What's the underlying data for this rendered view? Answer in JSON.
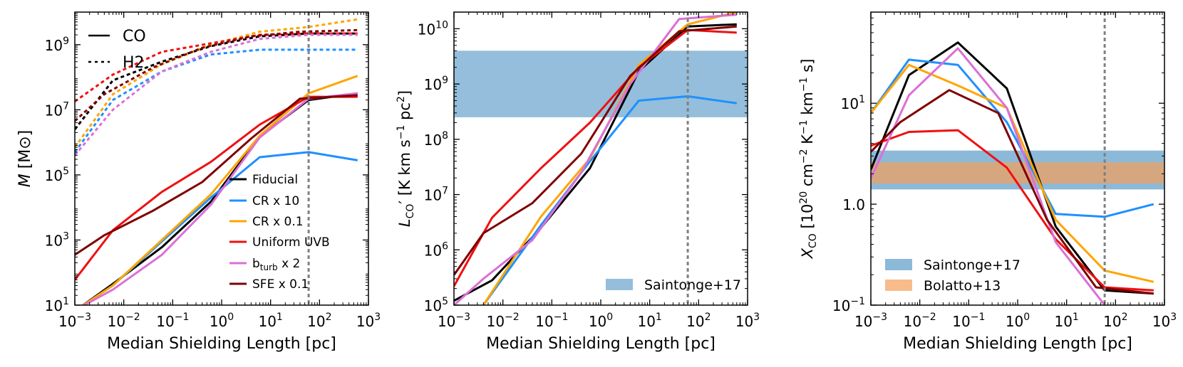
{
  "figure": {
    "panel_a": {
      "ylabel_main": "M",
      "ylabel_unit_open": " [M",
      "ylabel_unit_sub": "⊙",
      "ylabel_unit_close": "]",
      "style_legend": [
        {
          "label": "CO",
          "dash": "solid"
        },
        {
          "label": "H2",
          "dash": "dashed"
        }
      ]
    },
    "panel_b": {
      "ylabel_main": "L",
      "ylabel_sub": "CO",
      "ylabel_rest": "′ [K km s",
      "ylabel_exp1": "−1",
      "ylabel_mid": " pc",
      "ylabel_exp2": "2",
      "ylabel_close": "]"
    },
    "panel_c": {
      "ylabel_main": "X",
      "ylabel_sub": "CO",
      "ylabel_rest": " [10",
      "ylabel_exp0": "20",
      "ylabel_a": " cm",
      "ylabel_exp1": "−2",
      "ylabel_b": " K",
      "ylabel_exp2": "−1",
      "ylabel_c": " km",
      "ylabel_exp3": "−1",
      "ylabel_d": " s]"
    },
    "series_legend": [
      {
        "label": "Fiducial",
        "color": "#000000"
      },
      {
        "label": "CR x 10",
        "color": "#1e90ff"
      },
      {
        "label": "CR x 0.1",
        "color": "#ffa500"
      },
      {
        "label": "Uniform UVB",
        "color": "#ee1111"
      },
      {
        "label": "b",
        "sub": "turb",
        "label_tail": " x 2",
        "color": "#da70d6"
      },
      {
        "label": "SFE x 0.1",
        "color": "#800000"
      }
    ]
  },
  "chart_data": [
    {
      "type": "line",
      "title": "",
      "xlabel": "Median Shielding Length [pc]",
      "ylabel": "M [M_sun]",
      "xscale": "log",
      "yscale": "log",
      "xlim": [
        0.001,
        1000
      ],
      "ylim": [
        10,
        10000000000
      ],
      "xticks": [
        {
          "v": 0.001,
          "b": "10",
          "e": "−3"
        },
        {
          "v": 0.01,
          "b": "10",
          "e": "−2"
        },
        {
          "v": 0.1,
          "b": "10",
          "e": "−1"
        },
        {
          "v": 1,
          "b": "10",
          "e": "0"
        },
        {
          "v": 10,
          "b": "10",
          "e": "1"
        },
        {
          "v": 100,
          "b": "10",
          "e": "2"
        },
        {
          "v": 1000,
          "b": "10",
          "e": "3"
        }
      ],
      "yticks": [
        {
          "v": 10,
          "b": "10",
          "e": "1"
        },
        {
          "v": 1000,
          "b": "10",
          "e": "3"
        },
        {
          "v": 100000,
          "b": "10",
          "e": "5"
        },
        {
          "v": 10000000,
          "b": "10",
          "e": "7"
        },
        {
          "v": 1000000000,
          "b": "10",
          "e": "9"
        }
      ],
      "vline": 60,
      "bands": [],
      "series": [
        {
          "name": "Fiducial CO",
          "color": "#000000",
          "dash": "solid",
          "x": [
            0.0012,
            0.006,
            0.06,
            0.6,
            6,
            60,
            600
          ],
          "y": [
            8,
            45,
            600,
            15000,
            1500000,
            20000000,
            32000000
          ]
        },
        {
          "name": "CR x 10 CO",
          "color": "#1e90ff",
          "dash": "solid",
          "x": [
            0.0012,
            0.006,
            0.06,
            0.6,
            6,
            60,
            600
          ],
          "y": [
            8,
            40,
            900,
            20000,
            350000,
            500000,
            280000
          ]
        },
        {
          "name": "CR x 0.1 CO",
          "color": "#ffa500",
          "dash": "solid",
          "x": [
            0.0012,
            0.006,
            0.06,
            0.6,
            6,
            60,
            600
          ],
          "y": [
            8,
            40,
            1000,
            25000,
            1600000,
            32000000,
            110000000
          ]
        },
        {
          "name": "Uniform UVB CO",
          "color": "#ee1111",
          "dash": "solid",
          "x": [
            0.001,
            0.006,
            0.06,
            0.6,
            6,
            60,
            600
          ],
          "y": [
            60,
            2000,
            30000,
            250000,
            3500000,
            25000000,
            25000000
          ]
        },
        {
          "name": "b_turb x 2 CO",
          "color": "#da70d6",
          "dash": "solid",
          "x": [
            0.0012,
            0.006,
            0.06,
            0.6,
            6,
            60,
            600
          ],
          "y": [
            8,
            30,
            350,
            12000,
            1400000,
            22000000,
            32000000
          ]
        },
        {
          "name": "SFE x 0.1 CO",
          "color": "#800000",
          "dash": "solid",
          "x": [
            0.001,
            0.004,
            0.04,
            0.4,
            4,
            40,
            600
          ],
          "y": [
            350,
            1400,
            8000,
            60000,
            1300000,
            22000000,
            28000000
          ]
        },
        {
          "name": "Fiducial H2",
          "color": "#000000",
          "dash": "dashed",
          "x": [
            0.001,
            0.006,
            0.06,
            0.6,
            6,
            60,
            600
          ],
          "y": [
            2500000,
            80000000,
            300000000,
            900000000,
            1800000000,
            2200000000,
            2200000000
          ]
        },
        {
          "name": "CR x 10 H2",
          "color": "#1e90ff",
          "dash": "dashed",
          "x": [
            0.001,
            0.006,
            0.06,
            0.6,
            6,
            60,
            600
          ],
          "y": [
            500000,
            20000000,
            150000000,
            500000000,
            700000000,
            700000000,
            700000000
          ]
        },
        {
          "name": "CR x 0.1 H2",
          "color": "#ffa500",
          "dash": "dashed",
          "x": [
            0.001,
            0.006,
            0.06,
            0.6,
            6,
            60,
            600
          ],
          "y": [
            700000,
            30000000,
            250000000,
            1000000000,
            2500000000,
            3500000000,
            6000000000
          ]
        },
        {
          "name": "Uniform UVB H2",
          "color": "#ee1111",
          "dash": "dashed",
          "x": [
            0.001,
            0.006,
            0.06,
            0.6,
            6,
            60,
            600
          ],
          "y": [
            18000000,
            120000000,
            600000000,
            1100000000,
            2000000000,
            2200000000,
            2200000000
          ]
        },
        {
          "name": "b_turb x 2 H2",
          "color": "#da70d6",
          "dash": "dashed",
          "x": [
            0.001,
            0.006,
            0.06,
            0.6,
            6,
            60,
            600
          ],
          "y": [
            400000,
            10000000,
            150000000,
            600000000,
            1500000000,
            2000000000,
            2000000000
          ]
        },
        {
          "name": "SFE x 0.1 H2",
          "color": "#800000",
          "dash": "dashed",
          "x": [
            0.001,
            0.004,
            0.04,
            0.4,
            4,
            40,
            600
          ],
          "y": [
            4500000,
            30000000,
            200000000,
            800000000,
            1800000000,
            2500000000,
            2800000000
          ]
        }
      ]
    },
    {
      "type": "line",
      "title": "",
      "xlabel": "Median Shielding Length [pc]",
      "ylabel": "L_CO' [K km s^-1 pc^2]",
      "xscale": "log",
      "yscale": "log",
      "xlim": [
        0.001,
        1000
      ],
      "ylim": [
        100000,
        20000000000
      ],
      "xticks": [
        {
          "v": 0.001,
          "b": "10",
          "e": "−3"
        },
        {
          "v": 0.01,
          "b": "10",
          "e": "−2"
        },
        {
          "v": 0.1,
          "b": "10",
          "e": "−1"
        },
        {
          "v": 1,
          "b": "10",
          "e": "0"
        },
        {
          "v": 10,
          "b": "10",
          "e": "1"
        },
        {
          "v": 100,
          "b": "10",
          "e": "2"
        },
        {
          "v": 1000,
          "b": "10",
          "e": "3"
        }
      ],
      "yticks": [
        {
          "v": 100000,
          "b": "10",
          "e": "5"
        },
        {
          "v": 1000000,
          "b": "10",
          "e": "6"
        },
        {
          "v": 10000000,
          "b": "10",
          "e": "7"
        },
        {
          "v": 100000000,
          "b": "10",
          "e": "8"
        },
        {
          "v": 1000000000,
          "b": "10",
          "e": "9"
        },
        {
          "v": 10000000000,
          "b": "10",
          "e": "10"
        }
      ],
      "vline": 60,
      "bands": [
        {
          "label": "Saintonge+17",
          "color": "#5b9bc8",
          "opacity": 0.65,
          "y0": 250000000,
          "y1": 4000000000
        }
      ],
      "series": [
        {
          "name": "Fiducial",
          "color": "#000000",
          "dash": "solid",
          "x": [
            0.001,
            0.006,
            0.06,
            0.6,
            6,
            60,
            600
          ],
          "y": [
            120000,
            280000,
            2500000,
            30000000,
            1700000000,
            11000000000,
            12000000000
          ]
        },
        {
          "name": "CR x 10",
          "color": "#1e90ff",
          "dash": "solid",
          "x": [
            0.004,
            0.06,
            0.6,
            6,
            60,
            600
          ],
          "y": [
            100000,
            2800000,
            40000000,
            500000000,
            600000000,
            450000000
          ]
        },
        {
          "name": "CR x 0.1",
          "color": "#ffa500",
          "dash": "solid",
          "x": [
            0.004,
            0.06,
            0.6,
            6,
            60,
            600
          ],
          "y": [
            100000,
            4000000,
            45000000,
            2200000000,
            12000000000,
            20000000000
          ]
        },
        {
          "name": "Uniform UVB",
          "color": "#ee1111",
          "dash": "solid",
          "x": [
            0.001,
            0.006,
            0.06,
            0.6,
            6,
            60,
            600
          ],
          "y": [
            220000,
            3800000,
            30000000,
            200000000,
            2000000000,
            9500000000,
            8500000000
          ]
        },
        {
          "name": "b_turb x 2",
          "color": "#da70d6",
          "dash": "solid",
          "x": [
            0.001,
            0.004,
            0.04,
            0.4,
            4,
            40,
            600
          ],
          "y": [
            100000,
            300000,
            1500000,
            25000000,
            1000000000,
            15000000000,
            18000000000
          ]
        },
        {
          "name": "SFE x 0.1",
          "color": "#800000",
          "dash": "solid",
          "x": [
            0.001,
            0.004,
            0.04,
            0.4,
            4,
            40,
            600
          ],
          "y": [
            350000,
            2000000,
            7000000,
            55000000,
            1400000000,
            9000000000,
            11000000000
          ]
        }
      ]
    },
    {
      "type": "line",
      "title": "",
      "xlabel": "Median Shielding Length [pc]",
      "ylabel": "X_CO [10^20 cm^-2 K^-1 km^-1 s]",
      "xscale": "log",
      "yscale": "log",
      "xlim": [
        0.001,
        1000
      ],
      "ylim": [
        0.1,
        80
      ],
      "xticks": [
        {
          "v": 0.001,
          "b": "10",
          "e": "−3"
        },
        {
          "v": 0.01,
          "b": "10",
          "e": "−2"
        },
        {
          "v": 0.1,
          "b": "10",
          "e": "−1"
        },
        {
          "v": 1,
          "b": "10",
          "e": "0"
        },
        {
          "v": 10,
          "b": "10",
          "e": "1"
        },
        {
          "v": 100,
          "b": "10",
          "e": "2"
        },
        {
          "v": 1000,
          "b": "10",
          "e": "3"
        }
      ],
      "yticks": [
        {
          "v": 0.1,
          "b": "10",
          "e": "−1"
        },
        {
          "v": 1,
          "b": "10",
          "e": "0",
          "plain": "1.0"
        },
        {
          "v": 10,
          "b": "10",
          "e": "1"
        }
      ],
      "vline": 60,
      "bands": [
        {
          "label": "Saintonge+17",
          "color": "#5b9bc8",
          "opacity": 0.7,
          "y0": 1.4,
          "y1": 3.4
        },
        {
          "label": "Bolatto+13",
          "color": "#f5a05a",
          "opacity": 0.7,
          "y0": 1.6,
          "y1": 2.6
        }
      ],
      "series": [
        {
          "name": "Fiducial",
          "color": "#000000",
          "dash": "solid",
          "x": [
            0.001,
            0.006,
            0.06,
            0.6,
            6,
            60,
            600
          ],
          "y": [
            2.2,
            19,
            40,
            14,
            0.6,
            0.14,
            0.13
          ]
        },
        {
          "name": "CR x 10",
          "color": "#1e90ff",
          "dash": "solid",
          "x": [
            0.001,
            0.006,
            0.06,
            0.6,
            6,
            60,
            600
          ],
          "y": [
            8,
            27,
            24,
            6.5,
            0.8,
            0.75,
            1.0
          ]
        },
        {
          "name": "CR x 0.1",
          "color": "#ffa500",
          "dash": "solid",
          "x": [
            0.001,
            0.006,
            0.06,
            0.6,
            6,
            60,
            600
          ],
          "y": [
            8,
            24,
            15,
            9,
            0.7,
            0.22,
            0.17
          ]
        },
        {
          "name": "Uniform UVB",
          "color": "#ee1111",
          "dash": "solid",
          "x": [
            0.001,
            0.006,
            0.06,
            0.6,
            6,
            60,
            600
          ],
          "y": [
            3.8,
            5.2,
            5.4,
            2.3,
            0.45,
            0.15,
            0.14
          ]
        },
        {
          "name": "b_turb x 2",
          "color": "#da70d6",
          "dash": "solid",
          "x": [
            0.001,
            0.006,
            0.06,
            0.6,
            6,
            60
          ],
          "y": [
            1.8,
            12,
            35,
            9,
            0.42,
            0.1
          ]
        },
        {
          "name": "SFE x 0.1",
          "color": "#800000",
          "dash": "solid",
          "x": [
            0.001,
            0.004,
            0.04,
            0.4,
            4,
            40,
            600
          ],
          "y": [
            3.3,
            6.5,
            13.5,
            8,
            0.7,
            0.15,
            0.13
          ]
        }
      ]
    }
  ]
}
